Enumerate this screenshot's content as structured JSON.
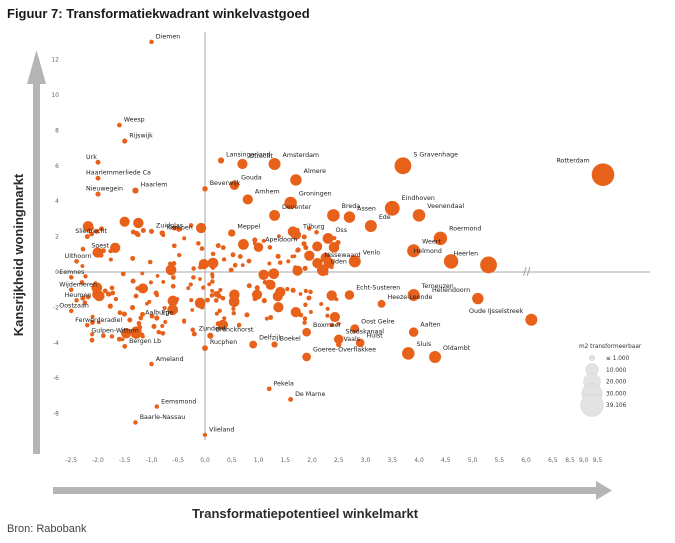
{
  "title": "Figuur 7: Transformatiekwadrant winkelvastgoed",
  "source": "Bron: Rabobank",
  "chart_data": {
    "type": "scatter",
    "xlabel": "Transformatiepotentieel winkelmarkt",
    "ylabel": "Kansrijkheid woningmarkt",
    "x_ticks": [
      "-2,5",
      "-2,0",
      "-1,5",
      "-1,0",
      "-0,5",
      "0,0",
      "0,5",
      "1,0",
      "1,5",
      "2,0",
      "2,5",
      "3,0",
      "3,5",
      "4,0",
      "4,5",
      "5,0",
      "5,5",
      "6,0",
      "6,5",
      "8,5",
      "9,0",
      "9,5"
    ],
    "y_ticks": [
      "12",
      "10",
      "8",
      "6",
      "4",
      "2",
      "0",
      "-2",
      "-4",
      "-6",
      "-8"
    ],
    "axis_break": "//",
    "color": "#e8611a",
    "legend": {
      "title": "m2 transformeerbaar",
      "entries": [
        "≤ 1.000",
        "10.000",
        "20.000",
        "30.000",
        "39.106"
      ]
    },
    "labeled_points": [
      {
        "name": "Diemen",
        "x": -1.0,
        "y": 13.0,
        "size": 500
      },
      {
        "name": "Weesp",
        "x": -1.6,
        "y": 8.3,
        "size": 600
      },
      {
        "name": "Rijswijk",
        "x": -1.5,
        "y": 7.4,
        "size": 800
      },
      {
        "name": "Urk",
        "x": -2.0,
        "y": 6.2,
        "size": 700
      },
      {
        "name": "Lansingerland",
        "x": 0.3,
        "y": 6.3,
        "size": 1500
      },
      {
        "name": "Utrecht",
        "x": 0.7,
        "y": 6.1,
        "size": 6000
      },
      {
        "name": "Amsterdam",
        "x": 1.3,
        "y": 6.1,
        "size": 9000
      },
      {
        "name": "Haarlemmerliede Ca",
        "x": -2.0,
        "y": 5.3,
        "size": 700
      },
      {
        "name": "Gouda",
        "x": 0.55,
        "y": 4.9,
        "size": 5000
      },
      {
        "name": "Beverwijk",
        "x": 0.0,
        "y": 4.7,
        "size": 1000
      },
      {
        "name": "Haarlem",
        "x": -1.3,
        "y": 4.6,
        "size": 1500
      },
      {
        "name": "Nieuwegein",
        "x": -2.0,
        "y": 4.4,
        "size": 800
      },
      {
        "name": "Almere",
        "x": 1.7,
        "y": 5.2,
        "size": 8000
      },
      {
        "name": "S Gravenhage",
        "x": 3.7,
        "y": 6.0,
        "size": 20000
      },
      {
        "name": "Rotterdam",
        "x": 9.7,
        "y": 5.5,
        "size": 39106
      },
      {
        "name": "Arnhem",
        "x": 0.8,
        "y": 4.1,
        "size": 6000
      },
      {
        "name": "Groningen",
        "x": 1.6,
        "y": 3.9,
        "size": 10000
      },
      {
        "name": "Eindhoven",
        "x": 3.5,
        "y": 3.6,
        "size": 15000
      },
      {
        "name": "Veenendaal",
        "x": 4.0,
        "y": 3.2,
        "size": 10000
      },
      {
        "name": "Zuidplas",
        "x": -1.0,
        "y": 2.3,
        "size": 800
      },
      {
        "name": "Kampen",
        "x": -0.8,
        "y": 2.2,
        "size": 1000
      },
      {
        "name": "Sliedrecht",
        "x": -2.2,
        "y": 2.0,
        "size": 700
      },
      {
        "name": "Deventer",
        "x": 1.3,
        "y": 3.2,
        "size": 7000
      },
      {
        "name": "Breda",
        "x": 2.4,
        "y": 3.2,
        "size": 10000
      },
      {
        "name": "Assen",
        "x": 2.7,
        "y": 3.1,
        "size": 8000
      },
      {
        "name": "Meppel",
        "x": 0.5,
        "y": 2.2,
        "size": 2500
      },
      {
        "name": "Tilburg",
        "x": 1.7,
        "y": 2.1,
        "size": 6000
      },
      {
        "name": "Ede",
        "x": 3.1,
        "y": 2.6,
        "size": 9000
      },
      {
        "name": "Apeldoorn",
        "x": 1.0,
        "y": 1.4,
        "size": 5000
      },
      {
        "name": "Oss",
        "x": 2.3,
        "y": 1.9,
        "size": 7000
      },
      {
        "name": "Roermond",
        "x": 4.4,
        "y": 1.9,
        "size": 12000
      },
      {
        "name": "Soest",
        "x": -1.9,
        "y": 1.2,
        "size": 700
      },
      {
        "name": "Uithoorn",
        "x": -2.4,
        "y": 0.6,
        "size": 600
      },
      {
        "name": "Nissewaard",
        "x": 2.1,
        "y": 0.5,
        "size": 6000
      },
      {
        "name": "Weert",
        "x": 3.9,
        "y": 1.2,
        "size": 11000
      },
      {
        "name": "Uden",
        "x": 2.2,
        "y": 0.1,
        "size": 8000
      },
      {
        "name": "Venlo",
        "x": 2.8,
        "y": 0.6,
        "size": 9000
      },
      {
        "name": "Helmond",
        "x": 4.6,
        "y": 0.6,
        "size": 14000
      },
      {
        "name": "Heerlen",
        "x": 5.3,
        "y": 0.4,
        "size": 20000
      },
      {
        "name": "Eemnes",
        "x": -2.5,
        "y": -0.3,
        "size": 500
      },
      {
        "name": "Wijdemeren",
        "x": -2.5,
        "y": -1.0,
        "size": 500
      },
      {
        "name": "Heumen",
        "x": -2.4,
        "y": -1.6,
        "size": 500
      },
      {
        "name": "Echt-Susteren",
        "x": 2.7,
        "y": -1.3,
        "size": 5000
      },
      {
        "name": "Terneuzen",
        "x": 3.9,
        "y": -1.3,
        "size": 9000
      },
      {
        "name": "Heeze-Leende",
        "x": 3.3,
        "y": -1.8,
        "size": 3000
      },
      {
        "name": "Hellendoorn",
        "x": 5.1,
        "y": -1.5,
        "size": 8000
      },
      {
        "name": "Oostzaan",
        "x": -2.5,
        "y": -2.2,
        "size": 500
      },
      {
        "name": "Aalburg",
        "x": -1.2,
        "y": -2.6,
        "size": 600
      },
      {
        "name": "Epe",
        "x": -0.9,
        "y": -2.6,
        "size": 800
      },
      {
        "name": "Ferwerderadiel",
        "x": -2.2,
        "y": -3.0,
        "size": 500
      },
      {
        "name": "Gulpen-Wittem",
        "x": -1.9,
        "y": -3.6,
        "size": 600
      },
      {
        "name": "Zunderd",
        "x": -0.2,
        "y": -3.5,
        "size": 700
      },
      {
        "name": "Bronckhorst",
        "x": 0.1,
        "y": -3.6,
        "size": 1500
      },
      {
        "name": "Oost Gelre",
        "x": 2.8,
        "y": -3.2,
        "size": 4000
      },
      {
        "name": "Aalten",
        "x": 3.9,
        "y": -3.4,
        "size": 5000
      },
      {
        "name": "Oude IJsselstreek",
        "x": 6.1,
        "y": -2.7,
        "size": 9000
      },
      {
        "name": "Boxmeer",
        "x": 1.9,
        "y": -3.4,
        "size": 4000
      },
      {
        "name": "Stadskanaal",
        "x": 2.5,
        "y": -3.8,
        "size": 5000
      },
      {
        "name": "Vaals",
        "x": 2.5,
        "y": -4.1,
        "size": 1000
      },
      {
        "name": "Hulst",
        "x": 2.9,
        "y": -4.0,
        "size": 4000
      },
      {
        "name": "Bergen Lb",
        "x": -1.5,
        "y": -4.2,
        "size": 600
      },
      {
        "name": "Delfzijl",
        "x": 0.9,
        "y": -4.1,
        "size": 3000
      },
      {
        "name": "Boekel",
        "x": 1.3,
        "y": -4.1,
        "size": 1500
      },
      {
        "name": "Rucphen",
        "x": 0.0,
        "y": -4.3,
        "size": 1200
      },
      {
        "name": "Ameland",
        "x": -1.0,
        "y": -5.2,
        "size": 500
      },
      {
        "name": "Sluis",
        "x": 3.8,
        "y": -4.6,
        "size": 10000
      },
      {
        "name": "Oldambt",
        "x": 4.3,
        "y": -4.8,
        "size": 9000
      },
      {
        "name": "Goeree-Overflakkee",
        "x": 1.9,
        "y": -4.8,
        "size": 4000
      },
      {
        "name": "Pekela",
        "x": 1.2,
        "y": -6.6,
        "size": 600
      },
      {
        "name": "Eemsmond",
        "x": -0.9,
        "y": -7.6,
        "size": 500
      },
      {
        "name": "De Marne",
        "x": 1.6,
        "y": -7.2,
        "size": 700
      },
      {
        "name": "Baarle-Nassau",
        "x": -1.3,
        "y": -8.5,
        "size": 500
      },
      {
        "name": "Vlieland",
        "x": 0.0,
        "y": -9.2,
        "size": 400
      }
    ]
  }
}
